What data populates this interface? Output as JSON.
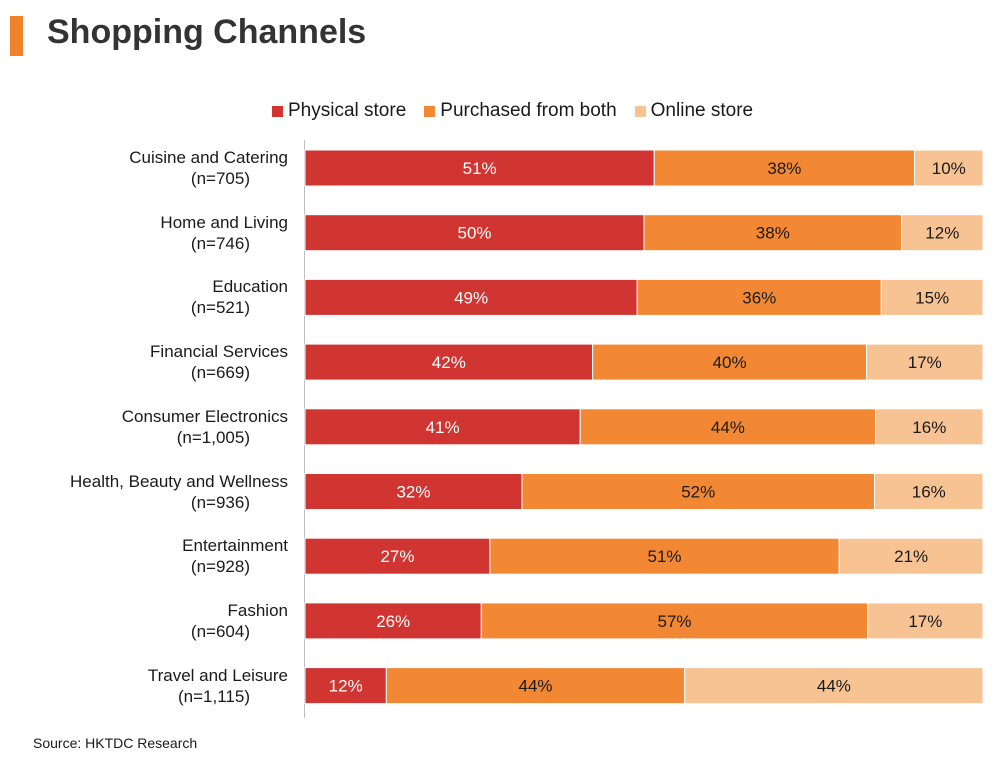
{
  "title": "Shopping Channels",
  "accent_color": "#f0822a",
  "source": "Source: HKTDC Research",
  "chart_data": {
    "type": "bar",
    "orientation": "horizontal",
    "stacked": true,
    "unit": "%",
    "title": "Shopping Channels",
    "legend_position": "top",
    "categories": [
      {
        "name": "Cuisine and Catering",
        "n": "(n=705)"
      },
      {
        "name": "Home and Living",
        "n": "(n=746)"
      },
      {
        "name": "Education",
        "n": "(n=521)"
      },
      {
        "name": "Financial Services",
        "n": "(n=669)"
      },
      {
        "name": "Consumer Electronics",
        "n": "(n=1,005)"
      },
      {
        "name": "Health, Beauty and Wellness",
        "n": "(n=936)"
      },
      {
        "name": "Entertainment",
        "n": "(n=928)"
      },
      {
        "name": "Fashion",
        "n": "(n=604)"
      },
      {
        "name": "Travel and Leisure",
        "n": "(n=1,115)"
      }
    ],
    "series": [
      {
        "name": "Physical store",
        "color": "#d03531",
        "text_color": "#ffffff",
        "values": [
          51,
          50,
          49,
          42,
          41,
          32,
          27,
          26,
          12
        ]
      },
      {
        "name": "Purchased from both",
        "color": "#f28833",
        "text_color": "#1a1a1a",
        "values": [
          38,
          38,
          36,
          40,
          44,
          52,
          51,
          57,
          44
        ]
      },
      {
        "name": "Online store",
        "color": "#f8c393",
        "text_color": "#1a1a1a",
        "values": [
          10,
          12,
          15,
          17,
          16,
          16,
          21,
          17,
          44
        ]
      }
    ]
  }
}
